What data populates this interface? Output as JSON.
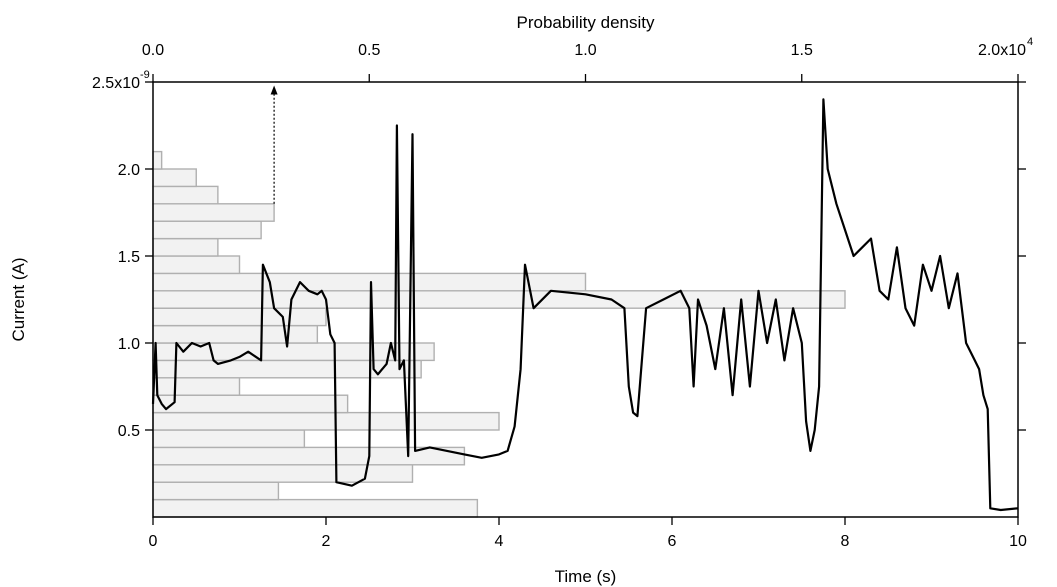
{
  "chart_data": {
    "type": "line",
    "xlabel": "Time (s)",
    "ylabel": "Current (A)",
    "x2label": "Probability density",
    "xlim": [
      0,
      10
    ],
    "ylim": [
      0,
      2.5e-09
    ],
    "x2lim": [
      0,
      20000
    ],
    "x_ticks": [
      0,
      2,
      4,
      6,
      8,
      10
    ],
    "x_tick_labels": [
      "0",
      "2",
      "4",
      "6",
      "8",
      "10"
    ],
    "y_ticks": [
      5e-10,
      1e-09,
      1.5e-09,
      2e-09,
      2.5e-09
    ],
    "y_tick_labels": [
      "0.5",
      "1.0",
      "1.5",
      "2.0",
      "2.5x10"
    ],
    "y_exponent": "-9",
    "x2_ticks": [
      0,
      5000,
      10000,
      15000,
      20000
    ],
    "x2_tick_labels": [
      "0.0",
      "0.5",
      "1.0",
      "1.5",
      "2.0x10"
    ],
    "x2_exponent": "4",
    "colors": {
      "trace": "#000000",
      "histogram": "#b0b0b0"
    },
    "series": [
      {
        "type": "line",
        "points": [
          [
            0.0,
            6.5e-10
          ],
          [
            0.03,
            1e-09
          ],
          [
            0.05,
            7e-10
          ],
          [
            0.1,
            6.5e-10
          ],
          [
            0.15,
            6.2e-10
          ],
          [
            0.25,
            6.6e-10
          ],
          [
            0.27,
            1e-09
          ],
          [
            0.35,
            9.5e-10
          ],
          [
            0.45,
            1e-09
          ],
          [
            0.55,
            9.8e-10
          ],
          [
            0.65,
            1e-09
          ],
          [
            0.7,
            9e-10
          ],
          [
            0.75,
            8.8e-10
          ],
          [
            0.9,
            9e-10
          ],
          [
            1.0,
            9.2e-10
          ],
          [
            1.1,
            9.5e-10
          ],
          [
            1.25,
            9e-10
          ],
          [
            1.27,
            1.45e-09
          ],
          [
            1.35,
            1.35e-09
          ],
          [
            1.4,
            1.2e-09
          ],
          [
            1.5,
            1.15e-09
          ],
          [
            1.55,
            9.8e-10
          ],
          [
            1.6,
            1.25e-09
          ],
          [
            1.7,
            1.35e-09
          ],
          [
            1.8,
            1.3e-09
          ],
          [
            1.9,
            1.28e-09
          ],
          [
            1.95,
            1.3e-09
          ],
          [
            2.0,
            1.25e-09
          ],
          [
            2.05,
            1.05e-09
          ],
          [
            2.1,
            1e-09
          ],
          [
            2.12,
            2e-10
          ],
          [
            2.3,
            1.8e-10
          ],
          [
            2.45,
            2.2e-10
          ],
          [
            2.5,
            3.5e-10
          ],
          [
            2.52,
            1.35e-09
          ],
          [
            2.55,
            8.5e-10
          ],
          [
            2.6,
            8.2e-10
          ],
          [
            2.7,
            8.8e-10
          ],
          [
            2.75,
            1e-09
          ],
          [
            2.8,
            9e-10
          ],
          [
            2.82,
            2.25e-09
          ],
          [
            2.85,
            8.5e-10
          ],
          [
            2.9,
            9e-10
          ],
          [
            2.95,
            3.5e-10
          ],
          [
            3.0,
            2.2e-09
          ],
          [
            3.03,
            3.8e-10
          ],
          [
            3.2,
            4e-10
          ],
          [
            3.4,
            3.8e-10
          ],
          [
            3.6,
            3.6e-10
          ],
          [
            3.8,
            3.4e-10
          ],
          [
            4.0,
            3.6e-10
          ],
          [
            4.1,
            3.8e-10
          ],
          [
            4.18,
            5.2e-10
          ],
          [
            4.25,
            8.5e-10
          ],
          [
            4.3,
            1.45e-09
          ],
          [
            4.4,
            1.2e-09
          ],
          [
            4.6,
            1.3e-09
          ],
          [
            5.0,
            1.28e-09
          ],
          [
            5.3,
            1.25e-09
          ],
          [
            5.45,
            1.2e-09
          ],
          [
            5.5,
            7.5e-10
          ],
          [
            5.55,
            6e-10
          ],
          [
            5.6,
            5.8e-10
          ],
          [
            5.7,
            1.2e-09
          ],
          [
            5.9,
            1.25e-09
          ],
          [
            6.1,
            1.3e-09
          ],
          [
            6.2,
            1.2e-09
          ],
          [
            6.25,
            7.5e-10
          ],
          [
            6.3,
            1.25e-09
          ],
          [
            6.4,
            1.1e-09
          ],
          [
            6.5,
            8.5e-10
          ],
          [
            6.6,
            1.2e-09
          ],
          [
            6.7,
            7e-10
          ],
          [
            6.8,
            1.25e-09
          ],
          [
            6.9,
            7.5e-10
          ],
          [
            7.0,
            1.3e-09
          ],
          [
            7.1,
            1e-09
          ],
          [
            7.2,
            1.25e-09
          ],
          [
            7.3,
            9e-10
          ],
          [
            7.4,
            1.2e-09
          ],
          [
            7.5,
            1e-09
          ],
          [
            7.55,
            5.5e-10
          ],
          [
            7.6,
            3.8e-10
          ],
          [
            7.65,
            5e-10
          ],
          [
            7.7,
            7.5e-10
          ],
          [
            7.75,
            2.4e-09
          ],
          [
            7.8,
            2e-09
          ],
          [
            7.9,
            1.8e-09
          ],
          [
            8.0,
            1.65e-09
          ],
          [
            8.1,
            1.5e-09
          ],
          [
            8.2,
            1.55e-09
          ],
          [
            8.3,
            1.6e-09
          ],
          [
            8.4,
            1.3e-09
          ],
          [
            8.5,
            1.25e-09
          ],
          [
            8.6,
            1.55e-09
          ],
          [
            8.7,
            1.2e-09
          ],
          [
            8.8,
            1.1e-09
          ],
          [
            8.9,
            1.45e-09
          ],
          [
            9.0,
            1.3e-09
          ],
          [
            9.1,
            1.5e-09
          ],
          [
            9.2,
            1.2e-09
          ],
          [
            9.3,
            1.4e-09
          ],
          [
            9.4,
            1e-09
          ],
          [
            9.5,
            9e-10
          ],
          [
            9.55,
            8.5e-10
          ],
          [
            9.6,
            7e-10
          ],
          [
            9.65,
            6.2e-10
          ],
          [
            9.68,
            5e-11
          ],
          [
            9.8,
            4e-11
          ],
          [
            10.0,
            5e-11
          ]
        ]
      },
      {
        "type": "histogram",
        "axis": "x2",
        "bin_current_A": [
          5e-11,
          1.5e-10,
          2.5e-10,
          3.5e-10,
          4.5e-10,
          5.5e-10,
          6.5e-10,
          7.5e-10,
          8.5e-10,
          9.5e-10,
          1.05e-09,
          1.15e-09,
          1.25e-09,
          1.35e-09,
          1.45e-09,
          1.55e-09,
          1.65e-09,
          1.75e-09,
          1.85e-09,
          1.95e-09,
          2.05e-09
        ],
        "density": [
          7500,
          2900,
          6000,
          7200,
          3500,
          8000,
          4500,
          2000,
          6200,
          6500,
          3800,
          4000,
          16000,
          10000,
          2000,
          1500,
          2500,
          2800,
          1500,
          1000,
          200
        ]
      }
    ],
    "annotations": [
      {
        "type": "arrow",
        "x_density": 2800,
        "y_from": 1.8e-09,
        "y_to": 2.48e-09,
        "style": "dotted"
      }
    ]
  }
}
